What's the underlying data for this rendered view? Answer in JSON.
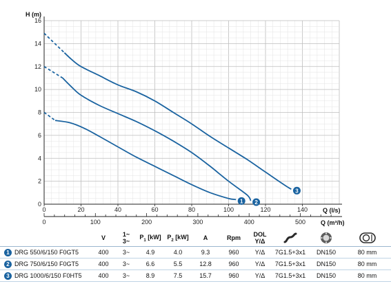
{
  "chart_data": {
    "type": "line",
    "x_label": "Q (l/s)",
    "y_label": "H (m)",
    "x2_label": "Q (m³/h)",
    "xlim": [
      0,
      160
    ],
    "ylim": [
      0,
      16
    ],
    "x_ticks": [
      0,
      20,
      40,
      60,
      80,
      100,
      120,
      140
    ],
    "y_ticks": [
      0,
      2,
      4,
      6,
      8,
      10,
      12,
      14,
      16
    ],
    "x2_ticks": [
      0,
      100,
      200,
      300,
      400,
      500
    ],
    "grid": true,
    "series": [
      {
        "name": "1",
        "color": "#1a63a0",
        "dashed": [
          [
            0,
            8.0
          ],
          [
            6,
            7.3
          ]
        ],
        "points": [
          [
            6,
            7.3
          ],
          [
            14,
            7.1
          ],
          [
            22,
            6.6
          ],
          [
            30,
            5.9
          ],
          [
            40,
            5.0
          ],
          [
            50,
            4.1
          ],
          [
            60,
            3.3
          ],
          [
            70,
            2.5
          ],
          [
            80,
            1.7
          ],
          [
            90,
            1.0
          ],
          [
            100,
            0.5
          ],
          [
            104,
            0.4
          ]
        ]
      },
      {
        "name": "2",
        "color": "#1a63a0",
        "dashed": [
          [
            0,
            12.0
          ],
          [
            10,
            11.0
          ]
        ],
        "points": [
          [
            10,
            11.0
          ],
          [
            15,
            10.2
          ],
          [
            20,
            9.5
          ],
          [
            30,
            8.6
          ],
          [
            40,
            7.9
          ],
          [
            50,
            7.2
          ],
          [
            60,
            6.4
          ],
          [
            70,
            5.5
          ],
          [
            80,
            4.5
          ],
          [
            90,
            3.3
          ],
          [
            100,
            2.0
          ],
          [
            110,
            0.8
          ],
          [
            112,
            0.3
          ]
        ]
      },
      {
        "name": "3",
        "color": "#1a63a0",
        "dashed": [
          [
            0,
            14.9
          ],
          [
            11,
            13.2
          ]
        ],
        "points": [
          [
            11,
            13.2
          ],
          [
            15,
            12.6
          ],
          [
            20,
            12.0
          ],
          [
            30,
            11.2
          ],
          [
            40,
            10.4
          ],
          [
            50,
            9.8
          ],
          [
            60,
            9.0
          ],
          [
            70,
            8.0
          ],
          [
            80,
            7.0
          ],
          [
            90,
            5.9
          ],
          [
            100,
            4.9
          ],
          [
            110,
            3.9
          ],
          [
            120,
            2.8
          ],
          [
            130,
            1.7
          ],
          [
            134,
            1.3
          ]
        ]
      }
    ]
  },
  "table": {
    "headers": {
      "v": "V",
      "phase_top": "1~",
      "phase_bottom": "3~",
      "p1": "P",
      "p1_sub": "1",
      "p1_unit": "[kW]",
      "p2": "P",
      "p2_sub": "2",
      "p2_unit": "[kW]",
      "a": "A",
      "rpm": "Rpm",
      "dol_top": "DOL",
      "dol_bottom": "Y/Δ"
    },
    "icons": {
      "cable": "cable-icon",
      "outlet": "outlet-flange-icon",
      "passage": "solids-passage-icon"
    },
    "rows": [
      {
        "num": "1",
        "model": "DRG 550/6/150 F0GT5",
        "v": "400",
        "phase": "3~",
        "p1": "4.9",
        "p2": "4.0",
        "a": "9.3",
        "rpm": "960",
        "dol": "Y/Δ",
        "cable": "7G1.5+3x1",
        "outlet": "DN150",
        "passage": "80 mm"
      },
      {
        "num": "2",
        "model": "DRG 750/6/150 F0GT5",
        "v": "400",
        "phase": "3~",
        "p1": "6.6",
        "p2": "5.5",
        "a": "12.8",
        "rpm": "960",
        "dol": "Y/Δ",
        "cable": "7G1.5+3x1",
        "outlet": "DN150",
        "passage": "80 mm"
      },
      {
        "num": "3",
        "model": "DRG 1000/6/150 F0HT5",
        "v": "400",
        "phase": "3~",
        "p1": "8.9",
        "p2": "7.5",
        "a": "15.7",
        "rpm": "960",
        "dol": "Y/Δ",
        "cable": "7G1.5+3x1",
        "outlet": "DN150",
        "passage": "80 mm"
      }
    ]
  }
}
